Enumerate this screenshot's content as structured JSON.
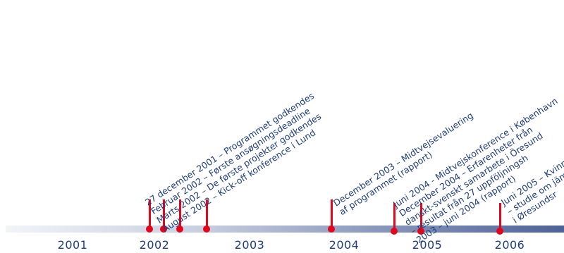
{
  "timeline": {
    "years": [
      "2001",
      "2002",
      "2003",
      "2004",
      "2005",
      "2006"
    ],
    "events": [
      {
        "lines": [
          "27 december 2001 – Programmet godkendes",
          "Februar 2002 – Første ansøgningsdeadline",
          "Marts 2002 – De første projekter godkendes",
          "August 2002 – Kick-off konference i Lund"
        ]
      },
      {
        "lines": [
          "December 2003 – Midtvejsevaluering",
          "af programmet (rapport)"
        ]
      },
      {
        "lines": [
          "Juni 2004 - Midtvejskonference i København",
          "December 2004 – Erfarenheter från",
          "danskt-svenskt samarbete i Öresund",
          "– resultat från 27 uppföljningsh",
          "2003 – juni 2004 (rapport)"
        ]
      },
      {
        "lines": [
          "Juni 2005 – Kvinn",
          "– studie om jäm",
          "i Øresundsr"
        ]
      }
    ]
  },
  "colors": {
    "text": "#203e7a",
    "marker": "#e1081d",
    "bar_start": "#f2f4f8",
    "bar_end": "#4f6296"
  }
}
